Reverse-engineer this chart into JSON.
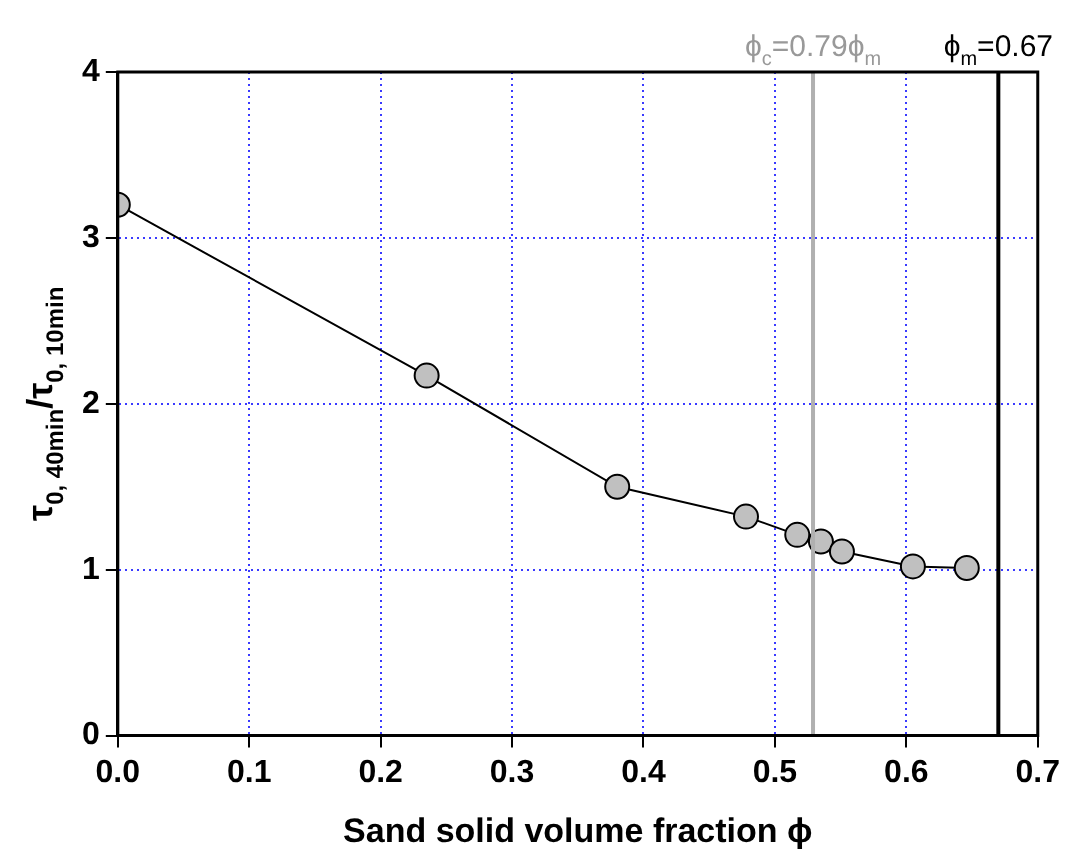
{
  "chart_data": {
    "type": "line",
    "xlabel": "Sand solid volume fraction ϕ",
    "ylabel": "τ$_{0, 40min}$/τ$_{0, 10min}$",
    "series": [
      {
        "color": "#c0c0c0",
        "x": [
          0,
          0.235,
          0.38,
          0.478,
          0.517,
          0.535,
          0.551,
          0.605,
          0.646
        ],
        "values": [
          3.2,
          2.17,
          1.5,
          1.32,
          1.21,
          1.17,
          1.11,
          1.02,
          1.01
        ]
      }
    ],
    "xlim": [
      0,
      0.7
    ],
    "ylim": [
      0,
      4
    ],
    "xticks": [
      {
        "value": 0,
        "label": "0.0"
      },
      {
        "value": 0.1,
        "label": "0.1"
      },
      {
        "value": 0.2,
        "label": "0.2"
      },
      {
        "value": 0.3,
        "label": "0.3"
      },
      {
        "value": 0.4,
        "label": "0.4"
      },
      {
        "value": 0.5,
        "label": "0.5"
      },
      {
        "value": 0.6,
        "label": "0.6"
      },
      {
        "value": 0.7,
        "label": "0.7"
      }
    ],
    "yticks": [
      0,
      1,
      2,
      3,
      4
    ],
    "annotations": [
      {
        "text": "ϕ$_{c}$=0.79ϕ$_{m}$",
        "x": 0.529,
        "y": 4
      }
    ],
    "ref_lines": [
      {
        "axis": "x",
        "value": 0.529,
        "color": "#b0b0b0"
      },
      {
        "axis": "x",
        "value": 0.67,
        "label": "ϕ$_{m}$=0.67",
        "color": "#000000"
      }
    ],
    "grid": true,
    "legend": false,
    "marker": "circle",
    "line_style": "solid"
  }
}
